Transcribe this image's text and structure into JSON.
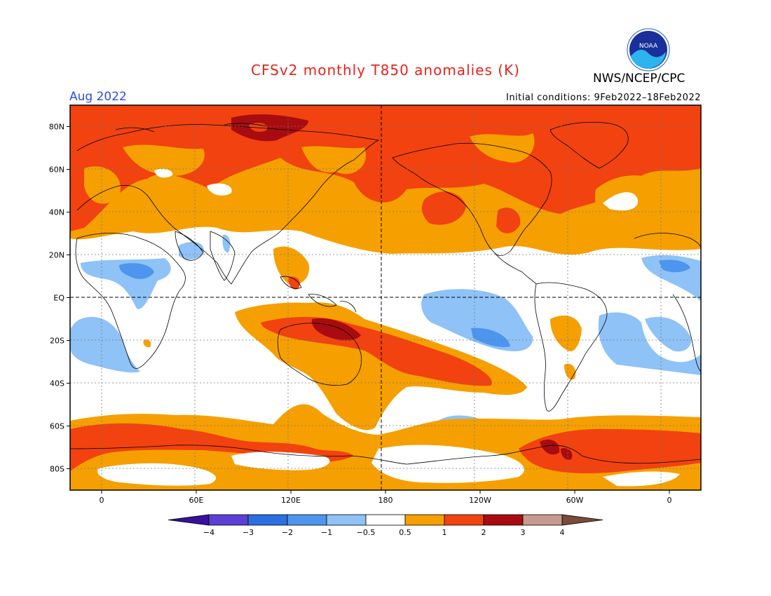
{
  "header": {
    "title": "CFSv2 monthly T850 anomalies (K)",
    "period": "Aug 2022",
    "agency": "NWS/NCEP/CPC",
    "initial_conditions": "Initial conditions: 9Feb2022–18Feb2022",
    "logo_text": "NOAA"
  },
  "map": {
    "lat_labels": [
      "80N",
      "60N",
      "40N",
      "20N",
      "EQ",
      "20S",
      "40S",
      "60S",
      "80S"
    ],
    "lat_values": [
      80,
      60,
      40,
      20,
      0,
      -20,
      -40,
      -60,
      -80
    ],
    "lon_labels": [
      "0",
      "60E",
      "120E",
      "180",
      "120W",
      "60W",
      "0"
    ],
    "lon_values": [
      0,
      60,
      120,
      180,
      240,
      300,
      360
    ],
    "lon_range": [
      -20,
      380
    ],
    "lat_range": [
      -90,
      90
    ]
  },
  "colorbar": {
    "labels": [
      "−4",
      "−3",
      "−2",
      "−1",
      "−0.5",
      "0.5",
      "1",
      "2",
      "3",
      "4"
    ],
    "colors": [
      "#3a0fa0",
      "#5b3fd6",
      "#2b6fe0",
      "#4d95ee",
      "#8fc2f7",
      "#ffffff",
      "#f5a000",
      "#f2420f",
      "#a80c10",
      "#c79a8e",
      "#7a4a3a"
    ]
  },
  "palette": {
    "blue_light": "#8fc2f7",
    "blue_mid": "#4d95ee",
    "orange": "#f5a000",
    "red_orange": "#f2420f",
    "dark_red": "#a80c10"
  }
}
